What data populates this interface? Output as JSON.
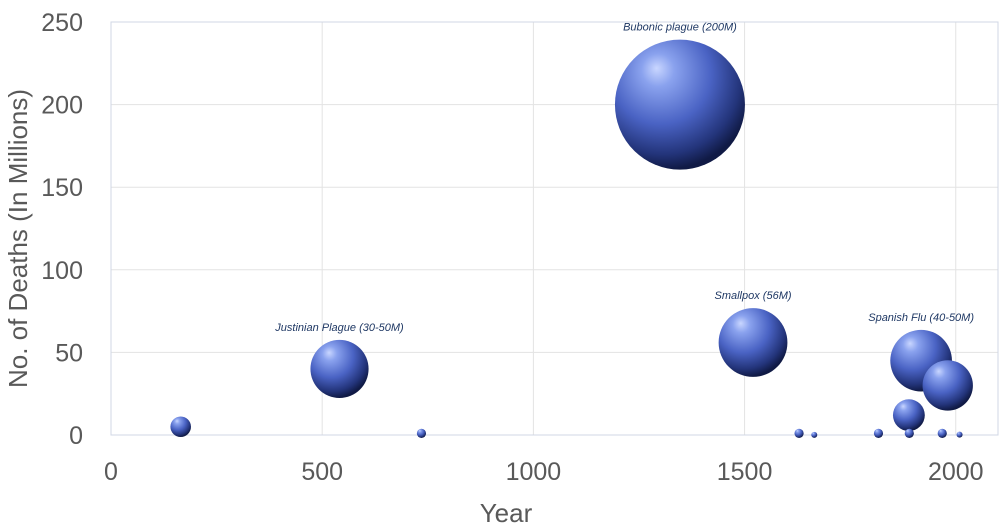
{
  "chart_data": {
    "type": "scatter",
    "xlabel": "Year",
    "ylabel": "No. of Deaths (In Millions)",
    "xlim": [
      0,
      2100
    ],
    "ylim": [
      0,
      250
    ],
    "x_ticks": [
      0,
      500,
      1000,
      1500,
      2000
    ],
    "y_ticks": [
      0,
      50,
      100,
      150,
      200,
      250
    ],
    "grid": true,
    "bubble_color": "#4a63c4",
    "points": [
      {
        "x": 165,
        "y": 5
      },
      {
        "x": 541,
        "y": 40
      },
      {
        "x": 735,
        "y": 1
      },
      {
        "x": 1347,
        "y": 200
      },
      {
        "x": 1520,
        "y": 56
      },
      {
        "x": 1629,
        "y": 1
      },
      {
        "x": 1665,
        "y": 0.1
      },
      {
        "x": 1817,
        "y": 1
      },
      {
        "x": 1889,
        "y": 12
      },
      {
        "x": 1890,
        "y": 1
      },
      {
        "x": 1918,
        "y": 45
      },
      {
        "x": 1968,
        "y": 1
      },
      {
        "x": 1981,
        "y": 30
      },
      {
        "x": 2009,
        "y": 0.2
      }
    ],
    "annotations": [
      {
        "text": "Justinian Plague (30-50M)",
        "x": 541,
        "y": 40
      },
      {
        "text": "Bubonic plague (200M)",
        "x": 1347,
        "y": 200
      },
      {
        "text": "Smallpox (56M)",
        "x": 1520,
        "y": 56
      },
      {
        "text": "Spanish Flu (40-50M)",
        "x": 1918,
        "y": 45
      }
    ]
  }
}
